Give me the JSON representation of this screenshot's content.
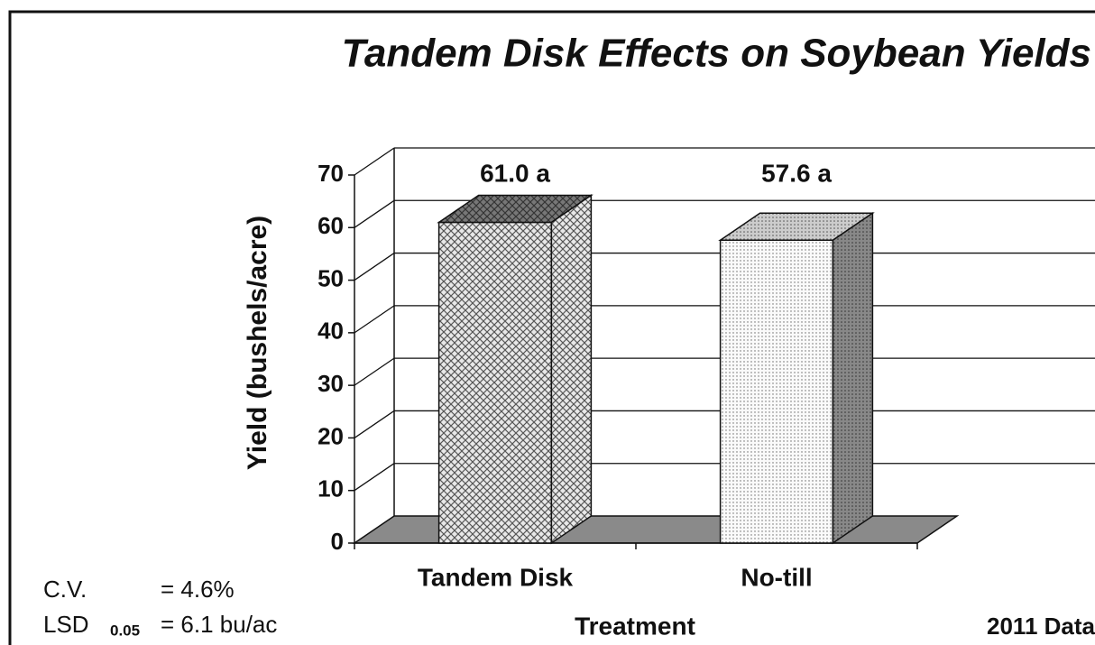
{
  "chart_data": {
    "type": "bar3d",
    "title": "Tandem Disk Effects on Soybean Yields",
    "y_label": "Yield (bushels/acre)",
    "x_label": "Treatment",
    "categories": [
      "Tandem Disk",
      "No-till"
    ],
    "values": [
      61.0,
      57.6
    ],
    "value_labels": [
      "61.0 a",
      "57.6 a"
    ],
    "ylim": [
      0,
      70
    ],
    "yticks": [
      0,
      10,
      20,
      30,
      40,
      50,
      60,
      70
    ],
    "grid": true,
    "notes": {
      "cv_label": "C.V.",
      "cv_value": "= 4.6%",
      "lsd_label": "LSD",
      "lsd_sub": "0.05",
      "lsd_value": "= 6.1 bu/ac",
      "data_note": "2011 Data"
    }
  }
}
